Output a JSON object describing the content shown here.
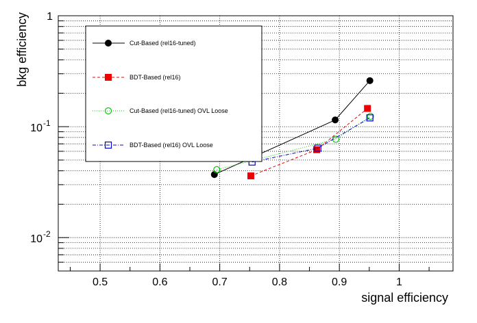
{
  "chart_data": {
    "type": "line",
    "xlabel": "signal efficiency",
    "ylabel": "bkg efficiency",
    "xlim": [
      0.43,
      1.09
    ],
    "ylim": [
      0.005,
      1
    ],
    "yscale": "log",
    "grid": true,
    "legend_position": "top-left",
    "x_ticks": [
      {
        "value": 0.5,
        "label": "0.5"
      },
      {
        "value": 0.6,
        "label": "0.6"
      },
      {
        "value": 0.7,
        "label": "0.7"
      },
      {
        "value": 0.8,
        "label": "0.8"
      },
      {
        "value": 0.9,
        "label": "0.9"
      },
      {
        "value": 1.0,
        "label": "1"
      }
    ],
    "y_ticks": [
      {
        "value": 1,
        "base": "1",
        "exp": ""
      },
      {
        "value": 0.1,
        "base": "10",
        "exp": "-1"
      },
      {
        "value": 0.01,
        "base": "10",
        "exp": "-2"
      }
    ],
    "series": [
      {
        "name": "Cut-Based (rel16-tuned)",
        "color": "#000000",
        "marker": "filled-circle",
        "dash": "",
        "x": [
          0.691,
          0.893,
          0.951
        ],
        "y": [
          0.037,
          0.115,
          0.26
        ]
      },
      {
        "name": "BDT-Based (rel16)",
        "color": "#ee0000",
        "marker": "filled-square",
        "dash": "4,3",
        "x": [
          0.752,
          0.862,
          0.947
        ],
        "y": [
          0.036,
          0.062,
          0.146
        ]
      },
      {
        "name": "Cut-Based (rel16-tuned) OVL Loose",
        "color": "#00cc00",
        "marker": "open-circle",
        "dash": "1,2",
        "x": [
          0.695,
          0.894,
          0.952
        ],
        "y": [
          0.041,
          0.077,
          0.124
        ]
      },
      {
        "name": "BDT-Based (rel16) OVL Loose",
        "color": "#0000cc",
        "marker": "open-square",
        "dash": "5,2,1,2",
        "x": [
          0.754,
          0.864,
          0.951
        ],
        "y": [
          0.048,
          0.064,
          0.12
        ]
      }
    ]
  }
}
